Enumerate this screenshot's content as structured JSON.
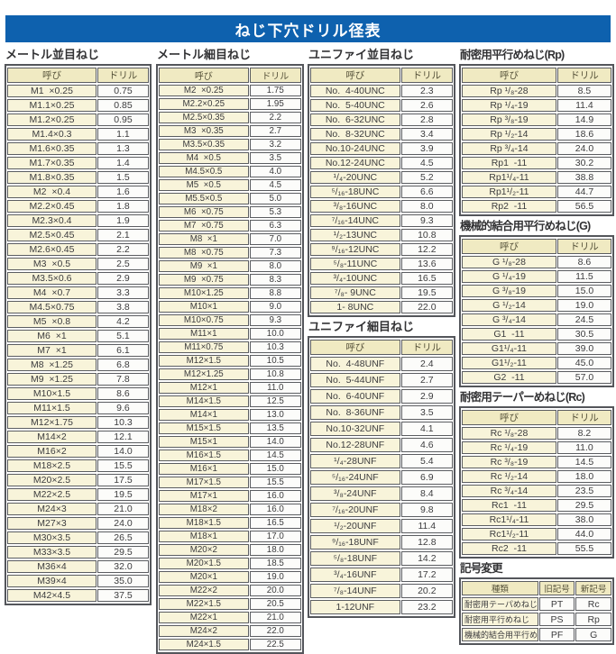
{
  "title": "ねじ下穴ドリル径表",
  "palette": {
    "accent_blue": "#0e61ae",
    "header_cream": "#f0eac2",
    "name_cell_cream": "#f8f4da",
    "drill_cell_white": "#fcfcfa",
    "border_gray": "#54565b"
  },
  "tables": {
    "metric_coarse": {
      "section_title": "メートル並目ねじ",
      "headers": [
        "呼び",
        "ドリル"
      ],
      "rows": [
        [
          "M1  ×0.25",
          "0.75"
        ],
        [
          "M1.1×0.25",
          "0.85"
        ],
        [
          "M1.2×0.25",
          "0.95"
        ],
        [
          "M1.4×0.3",
          "1.1"
        ],
        [
          "M1.6×0.35",
          "1.3"
        ],
        [
          "M1.7×0.35",
          "1.4"
        ],
        [
          "M1.8×0.35",
          "1.5"
        ],
        [
          "M2  ×0.4",
          "1.6"
        ],
        [
          "M2.2×0.45",
          "1.8"
        ],
        [
          "M2.3×0.4",
          "1.9"
        ],
        [
          "M2.5×0.45",
          "2.1"
        ],
        [
          "M2.6×0.45",
          "2.2"
        ],
        [
          "M3  ×0.5",
          "2.5"
        ],
        [
          "M3.5×0.6",
          "2.9"
        ],
        [
          "M4  ×0.7",
          "3.3"
        ],
        [
          "M4.5×0.75",
          "3.8"
        ],
        [
          "M5  ×0.8",
          "4.2"
        ],
        [
          "M6  ×1",
          "5.1"
        ],
        [
          "M7  ×1",
          "6.1"
        ],
        [
          "M8  ×1.25",
          "6.8"
        ],
        [
          "M9  ×1.25",
          "7.8"
        ],
        [
          "M10×1.5",
          "8.6"
        ],
        [
          "M11×1.5",
          "9.6"
        ],
        [
          "M12×1.75",
          "10.3"
        ],
        [
          "M14×2",
          "12.1"
        ],
        [
          "M16×2",
          "14.0"
        ],
        [
          "M18×2.5",
          "15.5"
        ],
        [
          "M20×2.5",
          "17.5"
        ],
        [
          "M22×2.5",
          "19.5"
        ],
        [
          "M24×3",
          "21.0"
        ],
        [
          "M27×3",
          "24.0"
        ],
        [
          "M30×3.5",
          "26.5"
        ],
        [
          "M33×3.5",
          "29.5"
        ],
        [
          "M36×4",
          "32.0"
        ],
        [
          "M39×4",
          "35.0"
        ],
        [
          "M42×4.5",
          "37.5"
        ]
      ]
    },
    "metric_fine": {
      "section_title": "メートル細目ねじ",
      "headers": [
        "呼び",
        "ドリル"
      ],
      "rows": [
        [
          "M2  ×0.25",
          "1.75"
        ],
        [
          "M2.2×0.25",
          "1.95"
        ],
        [
          "M2.5×0.35",
          "2.2"
        ],
        [
          "M3  ×0.35",
          "2.7"
        ],
        [
          "M3.5×0.35",
          "3.2"
        ],
        [
          "M4  ×0.5",
          "3.5"
        ],
        [
          "M4.5×0.5",
          "4.0"
        ],
        [
          "M5  ×0.5",
          "4.5"
        ],
        [
          "M5.5×0.5",
          "5.0"
        ],
        [
          "M6  ×0.75",
          "5.3"
        ],
        [
          "M7  ×0.75",
          "6.3"
        ],
        [
          "M8  ×1",
          "7.0"
        ],
        [
          "M8  ×0.75",
          "7.3"
        ],
        [
          "M9  ×1",
          "8.0"
        ],
        [
          "M9  ×0.75",
          "8.3"
        ],
        [
          "M10×1.25",
          "8.8"
        ],
        [
          "M10×1",
          "9.0"
        ],
        [
          "M10×0.75",
          "9.3"
        ],
        [
          "M11×1",
          "10.0"
        ],
        [
          "M11×0.75",
          "10.3"
        ],
        [
          "M12×1.5",
          "10.5"
        ],
        [
          "M12×1.25",
          "10.8"
        ],
        [
          "M12×1",
          "11.0"
        ],
        [
          "M14×1.5",
          "12.5"
        ],
        [
          "M14×1",
          "13.0"
        ],
        [
          "M15×1.5",
          "13.5"
        ],
        [
          "M15×1",
          "14.0"
        ],
        [
          "M16×1.5",
          "14.5"
        ],
        [
          "M16×1",
          "15.0"
        ],
        [
          "M17×1.5",
          "15.5"
        ],
        [
          "M17×1",
          "16.0"
        ],
        [
          "M18×2",
          "16.0"
        ],
        [
          "M18×1.5",
          "16.5"
        ],
        [
          "M18×1",
          "17.0"
        ],
        [
          "M20×2",
          "18.0"
        ],
        [
          "M20×1.5",
          "18.5"
        ],
        [
          "M20×1",
          "19.0"
        ],
        [
          "M22×2",
          "20.0"
        ],
        [
          "M22×1.5",
          "20.5"
        ],
        [
          "M22×1",
          "21.0"
        ],
        [
          "M24×2",
          "22.0"
        ],
        [
          "M24×1.5",
          "22.5"
        ]
      ]
    },
    "unified_coarse": {
      "section_title": "ユニファイ並目ねじ",
      "headers": [
        "呼び",
        "ドリル"
      ],
      "rows": [
        [
          "No.  4-40UNC",
          "2.3"
        ],
        [
          "No.  5-40UNC",
          "2.6"
        ],
        [
          "No.  6-32UNC",
          "2.8"
        ],
        [
          "No.  8-32UNC",
          "3.4"
        ],
        [
          "No.10-24UNC",
          "3.9"
        ],
        [
          "No.12-24UNC",
          "4.5"
        ],
        [
          "¹/₄-20UNC",
          "5.2"
        ],
        [
          "⁵/₁₆-18UNC",
          "6.6"
        ],
        [
          "³/₈-16UNC",
          "8.0"
        ],
        [
          "⁷/₁₆-14UNC",
          "9.3"
        ],
        [
          "¹/₂-13UNC",
          "10.8"
        ],
        [
          "⁹/₁₆-12UNC",
          "12.2"
        ],
        [
          "⁵/₈-11UNC",
          "13.6"
        ],
        [
          "³/₄-10UNC",
          "16.5"
        ],
        [
          "⁷/₈- 9UNC",
          "19.5"
        ],
        [
          "1- 8UNC",
          "22.0"
        ]
      ]
    },
    "unified_fine": {
      "section_title": "ユニファイ細目ねじ",
      "headers": [
        "呼び",
        "ドリル"
      ],
      "rows": [
        [
          "No.  4-48UNF",
          "2.4"
        ],
        [
          "No.  5-44UNF",
          "2.7"
        ],
        [
          "No.  6-40UNF",
          "2.9"
        ],
        [
          "No.  8-36UNF",
          "3.5"
        ],
        [
          "No.10-32UNF",
          "4.1"
        ],
        [
          "No.12-28UNF",
          "4.6"
        ],
        [
          "¹/₄-28UNF",
          "5.4"
        ],
        [
          "⁵/₁₆-24UNF",
          "6.9"
        ],
        [
          "³/₈-24UNF",
          "8.4"
        ],
        [
          "⁷/₁₆-20UNF",
          "9.8"
        ],
        [
          "¹/₂-20UNF",
          "11.4"
        ],
        [
          "⁹/₁₆-18UNF",
          "12.8"
        ],
        [
          "⁵/₈-18UNF",
          "14.2"
        ],
        [
          "³/₄-16UNF",
          "17.2"
        ],
        [
          "⁷/₈-14UNF",
          "20.2"
        ],
        [
          "1-12UNF",
          "23.2"
        ]
      ]
    },
    "rp": {
      "section_title": "耐密用平行めねじ(Rp)",
      "headers": [
        "呼び",
        "ドリル"
      ],
      "rows": [
        [
          "Rp ¹/₈-28",
          "8.5"
        ],
        [
          "Rp ¹/₄-19",
          "11.4"
        ],
        [
          "Rp ³/₈-19",
          "14.9"
        ],
        [
          "Rp ¹/₂-14",
          "18.6"
        ],
        [
          "Rp ³/₄-14",
          "24.0"
        ],
        [
          "Rp1  -11",
          "30.2"
        ],
        [
          "Rp1¹/₄-11",
          "38.8"
        ],
        [
          "Rp1¹/₂-11",
          "44.7"
        ],
        [
          "Rp2  -11",
          "56.5"
        ]
      ]
    },
    "g": {
      "section_title": "機械的結合用平行めねじ(G)",
      "headers": [
        "呼び",
        "ドリル"
      ],
      "rows": [
        [
          "G ¹/₈-28",
          "8.6"
        ],
        [
          "G ¹/₄-19",
          "11.5"
        ],
        [
          "G ³/₈-19",
          "15.0"
        ],
        [
          "G ¹/₂-14",
          "19.0"
        ],
        [
          "G ³/₄-14",
          "24.5"
        ],
        [
          "G1  -11",
          "30.5"
        ],
        [
          "G1¹/₄-11",
          "39.0"
        ],
        [
          "G1¹/₂-11",
          "45.0"
        ],
        [
          "G2  -11",
          "57.0"
        ]
      ]
    },
    "rc": {
      "section_title": "耐密用テーパーめねじ(Rc)",
      "headers": [
        "呼び",
        "ドリル"
      ],
      "rows": [
        [
          "Rc ¹/₈-28",
          "8.2"
        ],
        [
          "Rc ¹/₄-19",
          "11.0"
        ],
        [
          "Rc ³/₈-19",
          "14.5"
        ],
        [
          "Rc ¹/₂-14",
          "18.0"
        ],
        [
          "Rc ³/₄-14",
          "23.5"
        ],
        [
          "Rc1  -11",
          "29.5"
        ],
        [
          "Rc1¹/₄-11",
          "38.0"
        ],
        [
          "Rc1¹/₂-11",
          "44.0"
        ],
        [
          "Rc2  -11",
          "55.5"
        ]
      ]
    },
    "kigou": {
      "section_title": "記号変更",
      "headers": [
        "種類",
        "旧記号",
        "新記号"
      ],
      "rows": [
        [
          "耐密用テーパめねじ",
          "PT",
          "Rc"
        ],
        [
          "耐密用平行めねじ",
          "PS",
          "Rp"
        ],
        [
          "機械的結合用平行めねじ",
          "PF",
          "G"
        ]
      ]
    }
  }
}
